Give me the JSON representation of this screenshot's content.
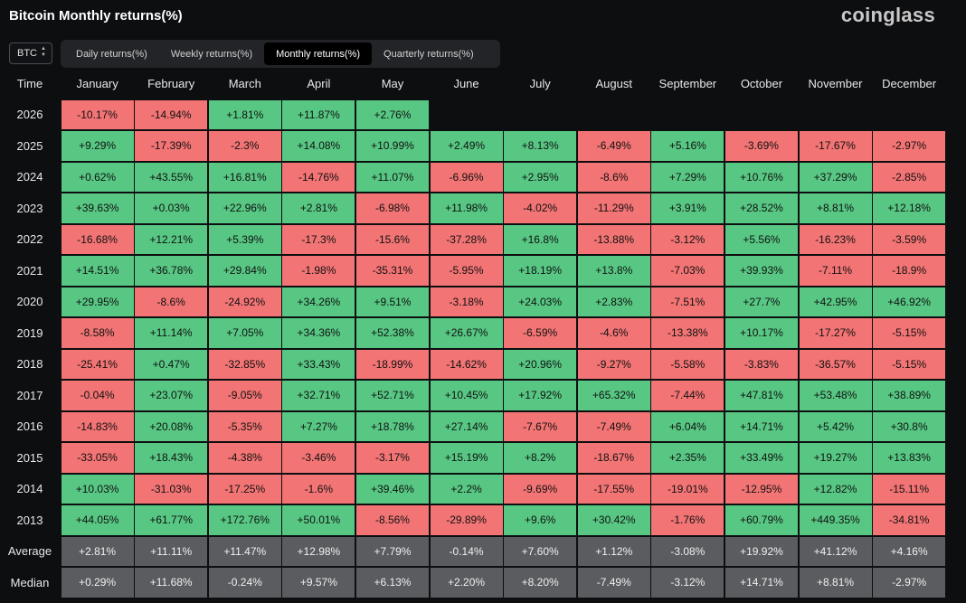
{
  "header": {
    "title": "Bitcoin Monthly returns(%)",
    "logo": "coinglass"
  },
  "asset_select": {
    "value": "BTC",
    "icon": "updown-chevron-icon"
  },
  "tabs": [
    {
      "label": "Daily returns(%)",
      "active": false
    },
    {
      "label": "Weekly returns(%)",
      "active": false
    },
    {
      "label": "Monthly returns(%)",
      "active": true
    },
    {
      "label": "Quarterly returns(%)",
      "active": false
    }
  ],
  "colors": {
    "positive": "#57c783",
    "negative": "#f27474",
    "stat": "#5b5c60"
  },
  "table": {
    "corner": "Time",
    "months": [
      "January",
      "February",
      "March",
      "April",
      "May",
      "June",
      "July",
      "August",
      "September",
      "October",
      "November",
      "December"
    ],
    "rows": [
      {
        "year": "2026",
        "values": [
          "-10.17%",
          "-14.94%",
          "+1.81%",
          "+11.87%",
          "+2.76%",
          "",
          "",
          "",
          "",
          "",
          "",
          ""
        ]
      },
      {
        "year": "2025",
        "values": [
          "+9.29%",
          "-17.39%",
          "-2.3%",
          "+14.08%",
          "+10.99%",
          "+2.49%",
          "+8.13%",
          "-6.49%",
          "+5.16%",
          "-3.69%",
          "-17.67%",
          "-2.97%"
        ]
      },
      {
        "year": "2024",
        "values": [
          "+0.62%",
          "+43.55%",
          "+16.81%",
          "-14.76%",
          "+11.07%",
          "-6.96%",
          "+2.95%",
          "-8.6%",
          "+7.29%",
          "+10.76%",
          "+37.29%",
          "-2.85%"
        ]
      },
      {
        "year": "2023",
        "values": [
          "+39.63%",
          "+0.03%",
          "+22.96%",
          "+2.81%",
          "-6.98%",
          "+11.98%",
          "-4.02%",
          "-11.29%",
          "+3.91%",
          "+28.52%",
          "+8.81%",
          "+12.18%"
        ]
      },
      {
        "year": "2022",
        "values": [
          "-16.68%",
          "+12.21%",
          "+5.39%",
          "-17.3%",
          "-15.6%",
          "-37.28%",
          "+16.8%",
          "-13.88%",
          "-3.12%",
          "+5.56%",
          "-16.23%",
          "-3.59%"
        ]
      },
      {
        "year": "2021",
        "values": [
          "+14.51%",
          "+36.78%",
          "+29.84%",
          "-1.98%",
          "-35.31%",
          "-5.95%",
          "+18.19%",
          "+13.8%",
          "-7.03%",
          "+39.93%",
          "-7.11%",
          "-18.9%"
        ]
      },
      {
        "year": "2020",
        "values": [
          "+29.95%",
          "-8.6%",
          "-24.92%",
          "+34.26%",
          "+9.51%",
          "-3.18%",
          "+24.03%",
          "+2.83%",
          "-7.51%",
          "+27.7%",
          "+42.95%",
          "+46.92%"
        ]
      },
      {
        "year": "2019",
        "values": [
          "-8.58%",
          "+11.14%",
          "+7.05%",
          "+34.36%",
          "+52.38%",
          "+26.67%",
          "-6.59%",
          "-4.6%",
          "-13.38%",
          "+10.17%",
          "-17.27%",
          "-5.15%"
        ]
      },
      {
        "year": "2018",
        "values": [
          "-25.41%",
          "+0.47%",
          "-32.85%",
          "+33.43%",
          "-18.99%",
          "-14.62%",
          "+20.96%",
          "-9.27%",
          "-5.58%",
          "-3.83%",
          "-36.57%",
          "-5.15%"
        ]
      },
      {
        "year": "2017",
        "values": [
          "-0.04%",
          "+23.07%",
          "-9.05%",
          "+32.71%",
          "+52.71%",
          "+10.45%",
          "+17.92%",
          "+65.32%",
          "-7.44%",
          "+47.81%",
          "+53.48%",
          "+38.89%"
        ]
      },
      {
        "year": "2016",
        "values": [
          "-14.83%",
          "+20.08%",
          "-5.35%",
          "+7.27%",
          "+18.78%",
          "+27.14%",
          "-7.67%",
          "-7.49%",
          "+6.04%",
          "+14.71%",
          "+5.42%",
          "+30.8%"
        ]
      },
      {
        "year": "2015",
        "values": [
          "-33.05%",
          "+18.43%",
          "-4.38%",
          "-3.46%",
          "-3.17%",
          "+15.19%",
          "+8.2%",
          "-18.67%",
          "+2.35%",
          "+33.49%",
          "+19.27%",
          "+13.83%"
        ]
      },
      {
        "year": "2014",
        "values": [
          "+10.03%",
          "-31.03%",
          "-17.25%",
          "-1.6%",
          "+39.46%",
          "+2.2%",
          "-9.69%",
          "-17.55%",
          "-19.01%",
          "-12.95%",
          "+12.82%",
          "-15.11%"
        ]
      },
      {
        "year": "2013",
        "values": [
          "+44.05%",
          "+61.77%",
          "+172.76%",
          "+50.01%",
          "-8.56%",
          "-29.89%",
          "+9.6%",
          "+30.42%",
          "-1.76%",
          "+60.79%",
          "+449.35%",
          "-34.81%"
        ]
      }
    ],
    "summary": [
      {
        "label": "Average",
        "values": [
          "+2.81%",
          "+11.11%",
          "+11.47%",
          "+12.98%",
          "+7.79%",
          "-0.14%",
          "+7.60%",
          "+1.12%",
          "-3.08%",
          "+19.92%",
          "+41.12%",
          "+4.16%"
        ]
      },
      {
        "label": "Median",
        "values": [
          "+0.29%",
          "+11.68%",
          "-0.24%",
          "+9.57%",
          "+6.13%",
          "+2.20%",
          "+8.20%",
          "-7.49%",
          "-3.12%",
          "+14.71%",
          "+8.81%",
          "-2.97%"
        ]
      }
    ]
  }
}
